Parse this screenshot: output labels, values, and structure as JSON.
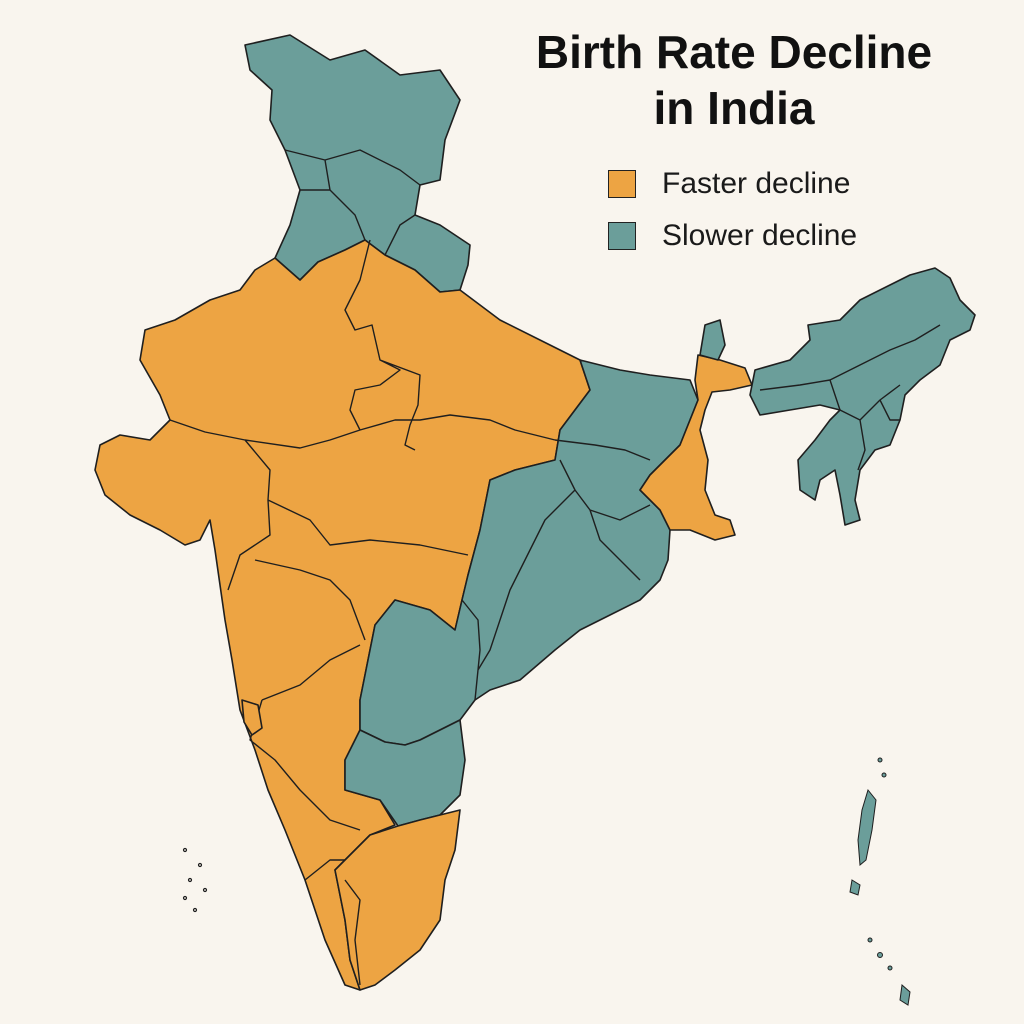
{
  "title": {
    "line1": "Birth Rate Decline",
    "line2": "in India"
  },
  "colors": {
    "faster": "#eda443",
    "slower": "#6b9e9a",
    "background": "#f9f5ee",
    "outline": "#1f1f1f"
  },
  "legend": {
    "items": [
      {
        "label": "Faster decline",
        "category": "faster"
      },
      {
        "label": "Slower decline",
        "category": "slower"
      }
    ]
  },
  "regions": [
    {
      "name": "north-slower",
      "category": "slower"
    },
    {
      "name": "west-faster",
      "category": "faster"
    },
    {
      "name": "east-slower",
      "category": "slower"
    },
    {
      "name": "east-faster",
      "category": "faster"
    },
    {
      "name": "northeast-slower",
      "category": "slower"
    },
    {
      "name": "south-slower",
      "category": "slower"
    },
    {
      "name": "south-faster",
      "category": "faster"
    }
  ]
}
